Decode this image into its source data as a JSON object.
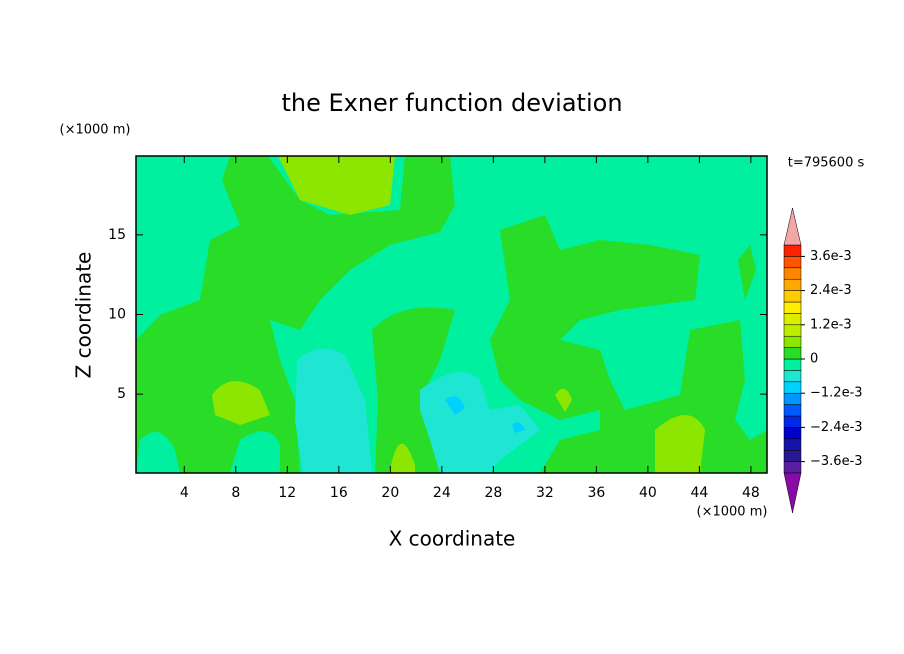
{
  "chart_data": {
    "type": "contour",
    "title": "the Exner function deviation",
    "x_label": "X coordinate",
    "y_label": "Z coordinate",
    "x_unit": "(×1000 m)",
    "y_unit": "(×1000 m)",
    "annotation": "t=795600 s",
    "xlim": [
      0.25,
      49.25
    ],
    "ylim": [
      0.05,
      19.95
    ],
    "xticks": [
      4,
      8,
      12,
      16,
      20,
      24,
      28,
      32,
      36,
      40,
      44,
      48
    ],
    "yticks": [
      5,
      10,
      15
    ],
    "levels": [
      -0.004,
      -0.0036,
      -0.0032,
      -0.0028,
      -0.0024,
      -0.002,
      -0.0016,
      -0.0012,
      -0.0008,
      -0.0004,
      0,
      0.0004,
      0.0008,
      0.0012,
      0.0016,
      0.002,
      0.0024,
      0.0028,
      0.0032,
      0.0036,
      0.004
    ],
    "colors": [
      "#5a1fa0",
      "#2a1890",
      "#1414a8",
      "#0000cc",
      "#0028e6",
      "#0058ff",
      "#0096ff",
      "#00d2ff",
      "#1ee6d2",
      "#00f0a0",
      "#28dc28",
      "#8ce600",
      "#bcee00",
      "#dcee00",
      "#ffee00",
      "#ffcc00",
      "#ffa800",
      "#ff8400",
      "#ff5400",
      "#ff2200"
    ],
    "extend_colors": {
      "under": "#8a0aa8",
      "over": "#f4a6a6"
    },
    "colorbar_ticks": [
      {
        "value": 0.0036,
        "label": "3.6e-3"
      },
      {
        "value": 0.0024,
        "label": "2.4e-3"
      },
      {
        "value": 0.0012,
        "label": "1.2e-3"
      },
      0,
      {
        "value": -0.0012,
        "label": "−1.2e-3"
      },
      {
        "value": -0.0024,
        "label": "−2.4e-3"
      },
      {
        "value": -0.0036,
        "label": "−3.6e-3"
      }
    ]
  }
}
